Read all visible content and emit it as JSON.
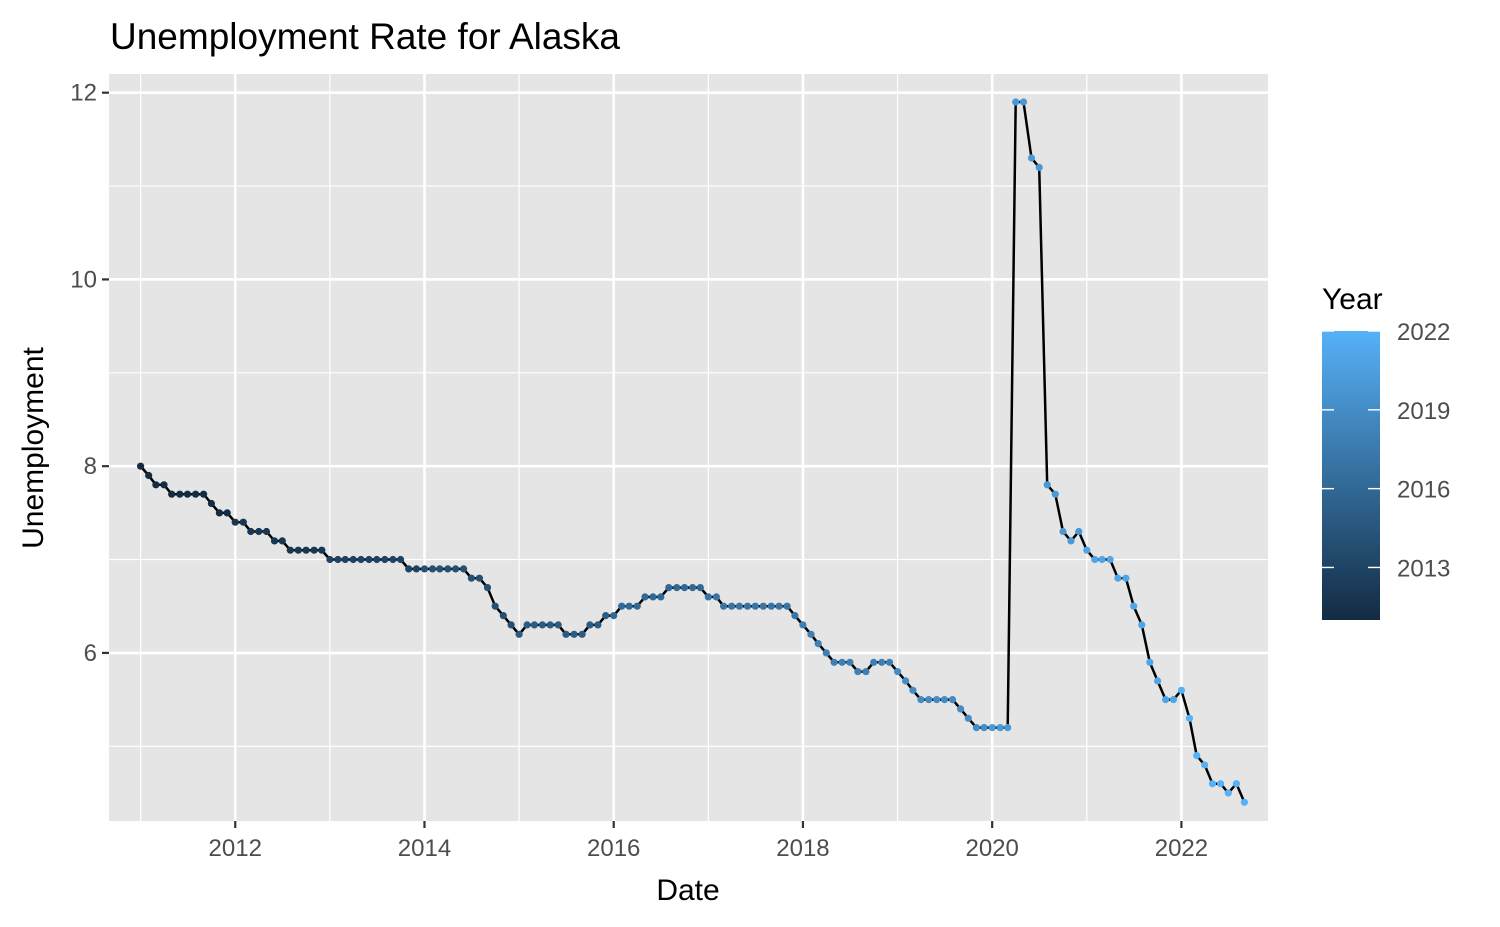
{
  "chart_data": {
    "type": "line",
    "title": "Unemployment Rate for Alaska",
    "xlabel": "Date",
    "ylabel": "Unemployment",
    "xlim": [
      "2010-09-01",
      "2022-12-01"
    ],
    "ylim": [
      4.2,
      12.2
    ],
    "x_ticks": [
      "2012",
      "2014",
      "2016",
      "2018",
      "2020",
      "2022"
    ],
    "y_ticks": [
      "6",
      "8",
      "10",
      "12"
    ],
    "grid": true,
    "line_color": "#000000",
    "panel_background": "#e5e5e5",
    "legend": {
      "title": "Year",
      "position": "right",
      "type": "colorbar",
      "labels": [
        "2013",
        "2016",
        "2019",
        "2022"
      ],
      "low_color": "#132b43",
      "high_color": "#56b1f7",
      "range": [
        2011,
        2022
      ]
    },
    "start": "2011-01",
    "values": [
      8.0,
      7.9,
      7.8,
      7.8,
      7.7,
      7.7,
      7.7,
      7.7,
      7.7,
      7.6,
      7.5,
      7.5,
      7.4,
      7.4,
      7.3,
      7.3,
      7.3,
      7.2,
      7.2,
      7.1,
      7.1,
      7.1,
      7.1,
      7.1,
      7.0,
      7.0,
      7.0,
      7.0,
      7.0,
      7.0,
      7.0,
      7.0,
      7.0,
      7.0,
      6.9,
      6.9,
      6.9,
      6.9,
      6.9,
      6.9,
      6.9,
      6.9,
      6.8,
      6.8,
      6.7,
      6.5,
      6.4,
      6.3,
      6.2,
      6.3,
      6.3,
      6.3,
      6.3,
      6.3,
      6.2,
      6.2,
      6.2,
      6.3,
      6.3,
      6.4,
      6.4,
      6.5,
      6.5,
      6.5,
      6.6,
      6.6,
      6.6,
      6.7,
      6.7,
      6.7,
      6.7,
      6.7,
      6.6,
      6.6,
      6.5,
      6.5,
      6.5,
      6.5,
      6.5,
      6.5,
      6.5,
      6.5,
      6.5,
      6.4,
      6.3,
      6.2,
      6.1,
      6.0,
      5.9,
      5.9,
      5.9,
      5.8,
      5.8,
      5.9,
      5.9,
      5.9,
      5.8,
      5.7,
      5.6,
      5.5,
      5.5,
      5.5,
      5.5,
      5.5,
      5.4,
      5.3,
      5.2,
      5.2,
      5.2,
      5.2,
      5.2,
      11.9,
      11.9,
      11.3,
      11.2,
      7.8,
      7.7,
      7.3,
      7.2,
      7.3,
      7.1,
      7.0,
      7.0,
      7.0,
      6.8,
      6.8,
      6.5,
      6.3,
      5.9,
      5.7,
      5.5,
      5.5,
      5.6,
      5.3,
      4.9,
      4.8,
      4.6,
      4.6,
      4.5,
      4.6,
      4.4
    ]
  }
}
